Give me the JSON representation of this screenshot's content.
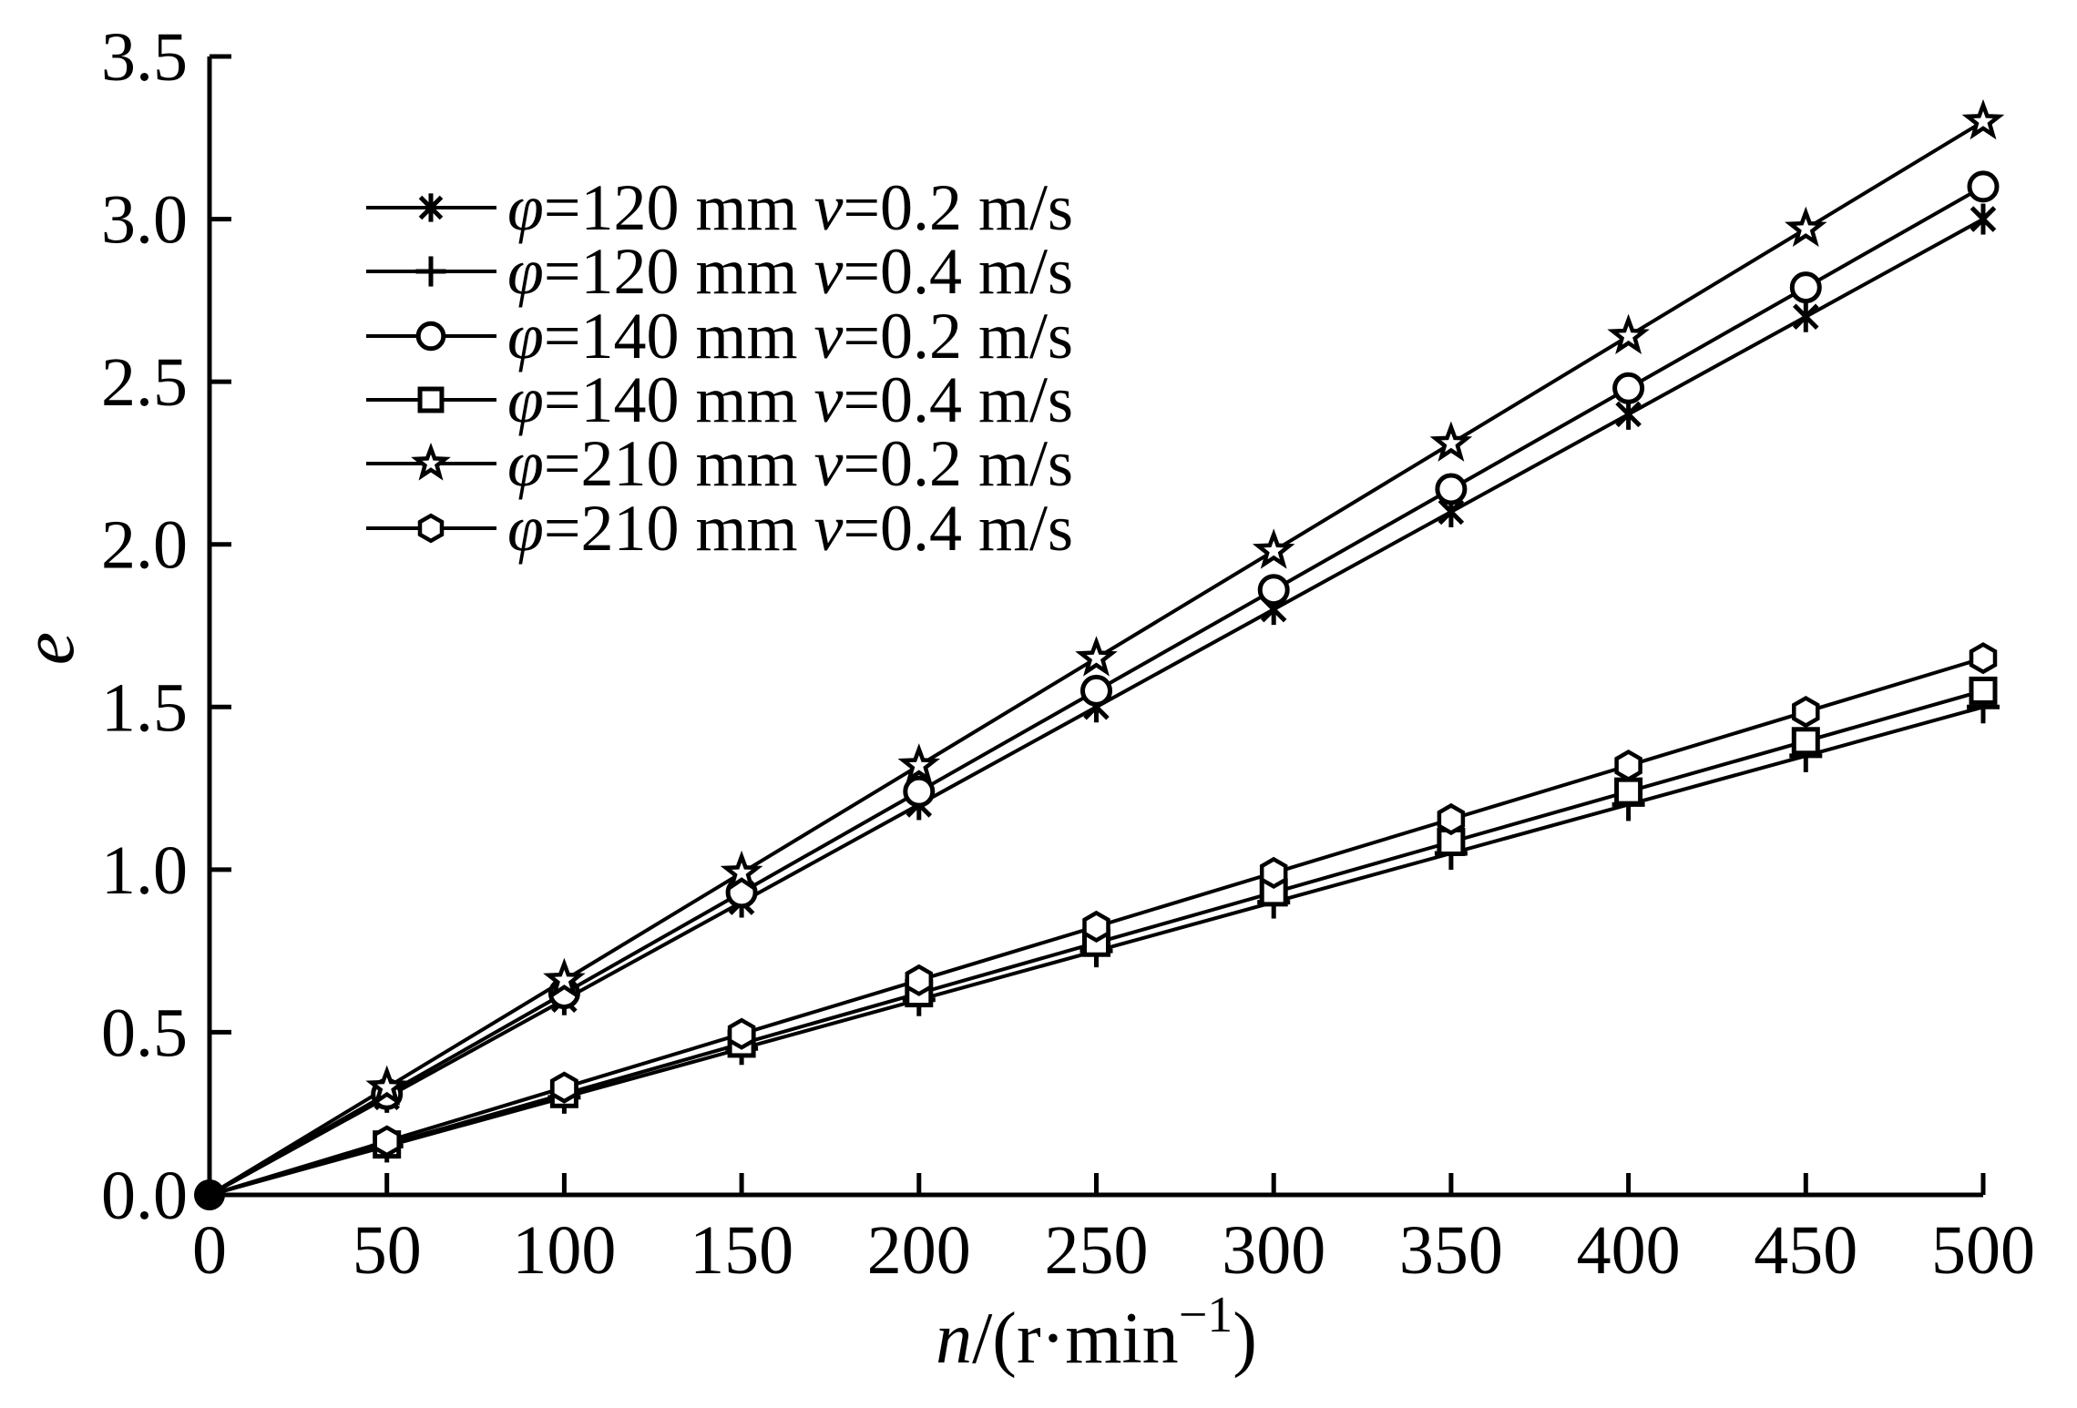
{
  "figure": {
    "background": "#ffffff",
    "ink_color": "#000000"
  },
  "chart_data": {
    "type": "line",
    "title": "",
    "xlabel": "n/(r·min⁻¹)",
    "xlabel_parts": {
      "var": "n",
      "unit_pre": "/(r·min",
      "sup": "−1",
      "unit_post": ")"
    },
    "ylabel": "e",
    "xlim": [
      0,
      500
    ],
    "ylim": [
      0.0,
      3.5
    ],
    "xticks": [
      "0",
      "50",
      "100",
      "150",
      "200",
      "250",
      "300",
      "350",
      "400",
      "450",
      "500"
    ],
    "yticks": [
      "0.0",
      "0.5",
      "1.0",
      "1.5",
      "2.0",
      "2.5",
      "3.0",
      "3.5"
    ],
    "grid": false,
    "legend_position": "upper-left-inside",
    "x": [
      0,
      50,
      100,
      150,
      200,
      250,
      300,
      350,
      400,
      450,
      500
    ],
    "series": [
      {
        "label": "φ=120 mm v=0.2 m/s",
        "phi": "120",
        "v": "0.2",
        "marker": "asterisk",
        "values": [
          0,
          0.3,
          0.6,
          0.9,
          1.2,
          1.5,
          1.8,
          2.1,
          2.4,
          2.7,
          3.0
        ]
      },
      {
        "label": "φ=120 mm v=0.4 m/s",
        "phi": "120",
        "v": "0.4",
        "marker": "plus",
        "values": [
          0,
          0.15,
          0.3,
          0.45,
          0.6,
          0.75,
          0.9,
          1.05,
          1.2,
          1.35,
          1.5
        ]
      },
      {
        "label": "φ=140 mm v=0.2 m/s",
        "phi": "140",
        "v": "0.2",
        "marker": "circle",
        "values": [
          0,
          0.31,
          0.62,
          0.93,
          1.24,
          1.55,
          1.86,
          2.17,
          2.48,
          2.79,
          3.1
        ]
      },
      {
        "label": "φ=140 mm v=0.4 m/s",
        "phi": "140",
        "v": "0.4",
        "marker": "square",
        "values": [
          0,
          0.155,
          0.31,
          0.465,
          0.62,
          0.775,
          0.93,
          1.085,
          1.24,
          1.395,
          1.55
        ]
      },
      {
        "label": "φ=210 mm v=0.2 m/s",
        "phi": "210",
        "v": "0.2",
        "marker": "star",
        "values": [
          0,
          0.33,
          0.66,
          0.99,
          1.32,
          1.65,
          1.98,
          2.31,
          2.64,
          2.97,
          3.3
        ]
      },
      {
        "label": "φ=210 mm v=0.4 m/s",
        "phi": "210",
        "v": "0.4",
        "marker": "hexagon",
        "values": [
          0,
          0.165,
          0.33,
          0.495,
          0.66,
          0.825,
          0.99,
          1.155,
          1.32,
          1.485,
          1.65
        ]
      }
    ],
    "legend_label_template": {
      "phi_prefix": "φ=",
      "phi_suffix": " mm ",
      "v_prefix": "v=",
      "v_suffix": " m/s"
    }
  }
}
